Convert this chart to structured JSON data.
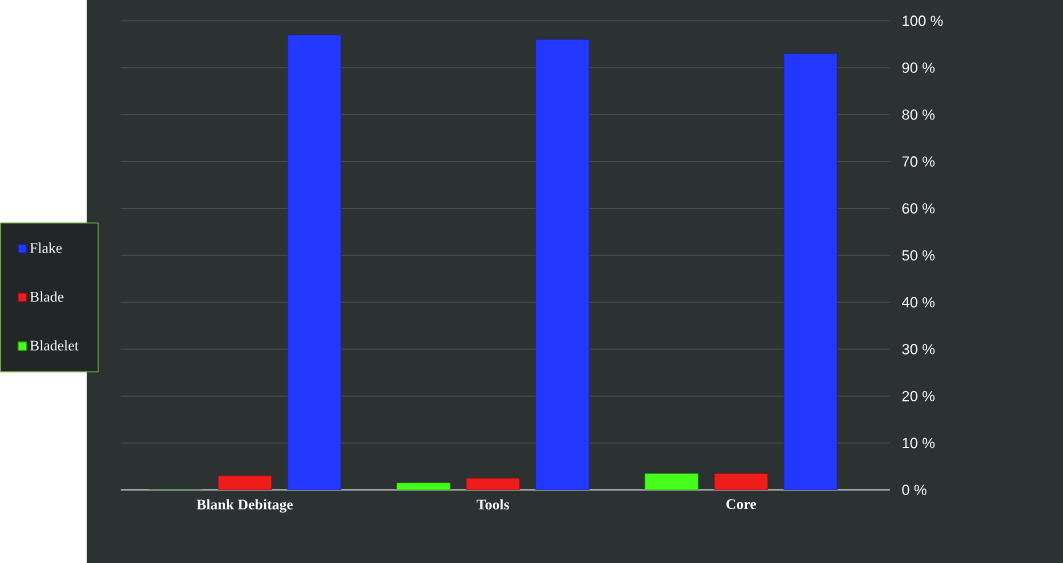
{
  "chart_data": {
    "type": "bar",
    "categories": [
      "Blank Debitage",
      "Tools",
      "Core"
    ],
    "series": [
      {
        "name": "Bladelet",
        "color": "#44ff1a",
        "values": [
          0,
          1.5,
          3.5
        ]
      },
      {
        "name": "Blade",
        "color": "#ee1c1c",
        "values": [
          3,
          2.5,
          3.5
        ]
      },
      {
        "name": "Flake",
        "color": "#2238ff",
        "values": [
          97,
          96,
          93
        ]
      }
    ],
    "ylim": [
      0,
      100
    ],
    "yticks": [
      {
        "value": 0,
        "label": "0 %"
      },
      {
        "value": 10,
        "label": "10 %"
      },
      {
        "value": 20,
        "label": "20 %"
      },
      {
        "value": 30,
        "label": "30 %"
      },
      {
        "value": 40,
        "label": "40 %"
      },
      {
        "value": 50,
        "label": "50 %"
      },
      {
        "value": 60,
        "label": "60 %"
      },
      {
        "value": 70,
        "label": "70 %"
      },
      {
        "value": 80,
        "label": "80 %"
      },
      {
        "value": 90,
        "label": "90 %"
      },
      {
        "value": 100,
        "label": "100 %"
      }
    ],
    "grid": "y",
    "legend": "left"
  }
}
